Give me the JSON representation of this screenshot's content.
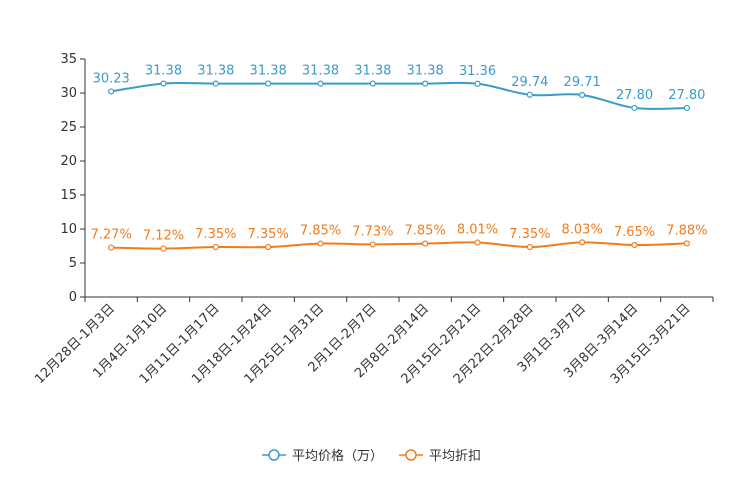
{
  "chart_data": {
    "type": "line",
    "categories": [
      "12月28日-1月3日",
      "1月4日-1月10日",
      "1月11日-1月17日",
      "1月18日-1月24日",
      "1月25日-1月31日",
      "2月1日-2月7日",
      "2月8日-2月14日",
      "2月15日-2月21日",
      "2月22日-2月28日",
      "3月1日-3月7日",
      "3月8日-3月14日",
      "3月15日-3月21日"
    ],
    "ylim": [
      0,
      35
    ],
    "yticks": [
      0,
      5,
      10,
      15,
      20,
      25,
      30,
      35
    ],
    "series": [
      {
        "name": "平均价格（万）",
        "color": "#3A9BCC",
        "values": [
          30.23,
          31.38,
          31.38,
          31.38,
          31.38,
          31.38,
          31.38,
          31.36,
          29.74,
          29.71,
          27.8,
          27.8
        ],
        "labels": [
          "30.23",
          "31.38",
          "31.38",
          "31.38",
          "31.38",
          "31.38",
          "31.38",
          "31.36",
          "29.74",
          "29.71",
          "27.80",
          "27.80"
        ]
      },
      {
        "name": "平均折扣",
        "color": "#F07C1E",
        "values": [
          7.27,
          7.12,
          7.35,
          7.35,
          7.85,
          7.73,
          7.85,
          8.01,
          7.35,
          8.03,
          7.65,
          7.88
        ],
        "labels": [
          "7.27%",
          "7.12%",
          "7.35%",
          "7.35%",
          "7.85%",
          "7.73%",
          "7.85%",
          "8.01%",
          "7.35%",
          "8.03%",
          "7.65%",
          "7.88%"
        ]
      }
    ],
    "legend_position": "bottom-center",
    "grid": false
  }
}
